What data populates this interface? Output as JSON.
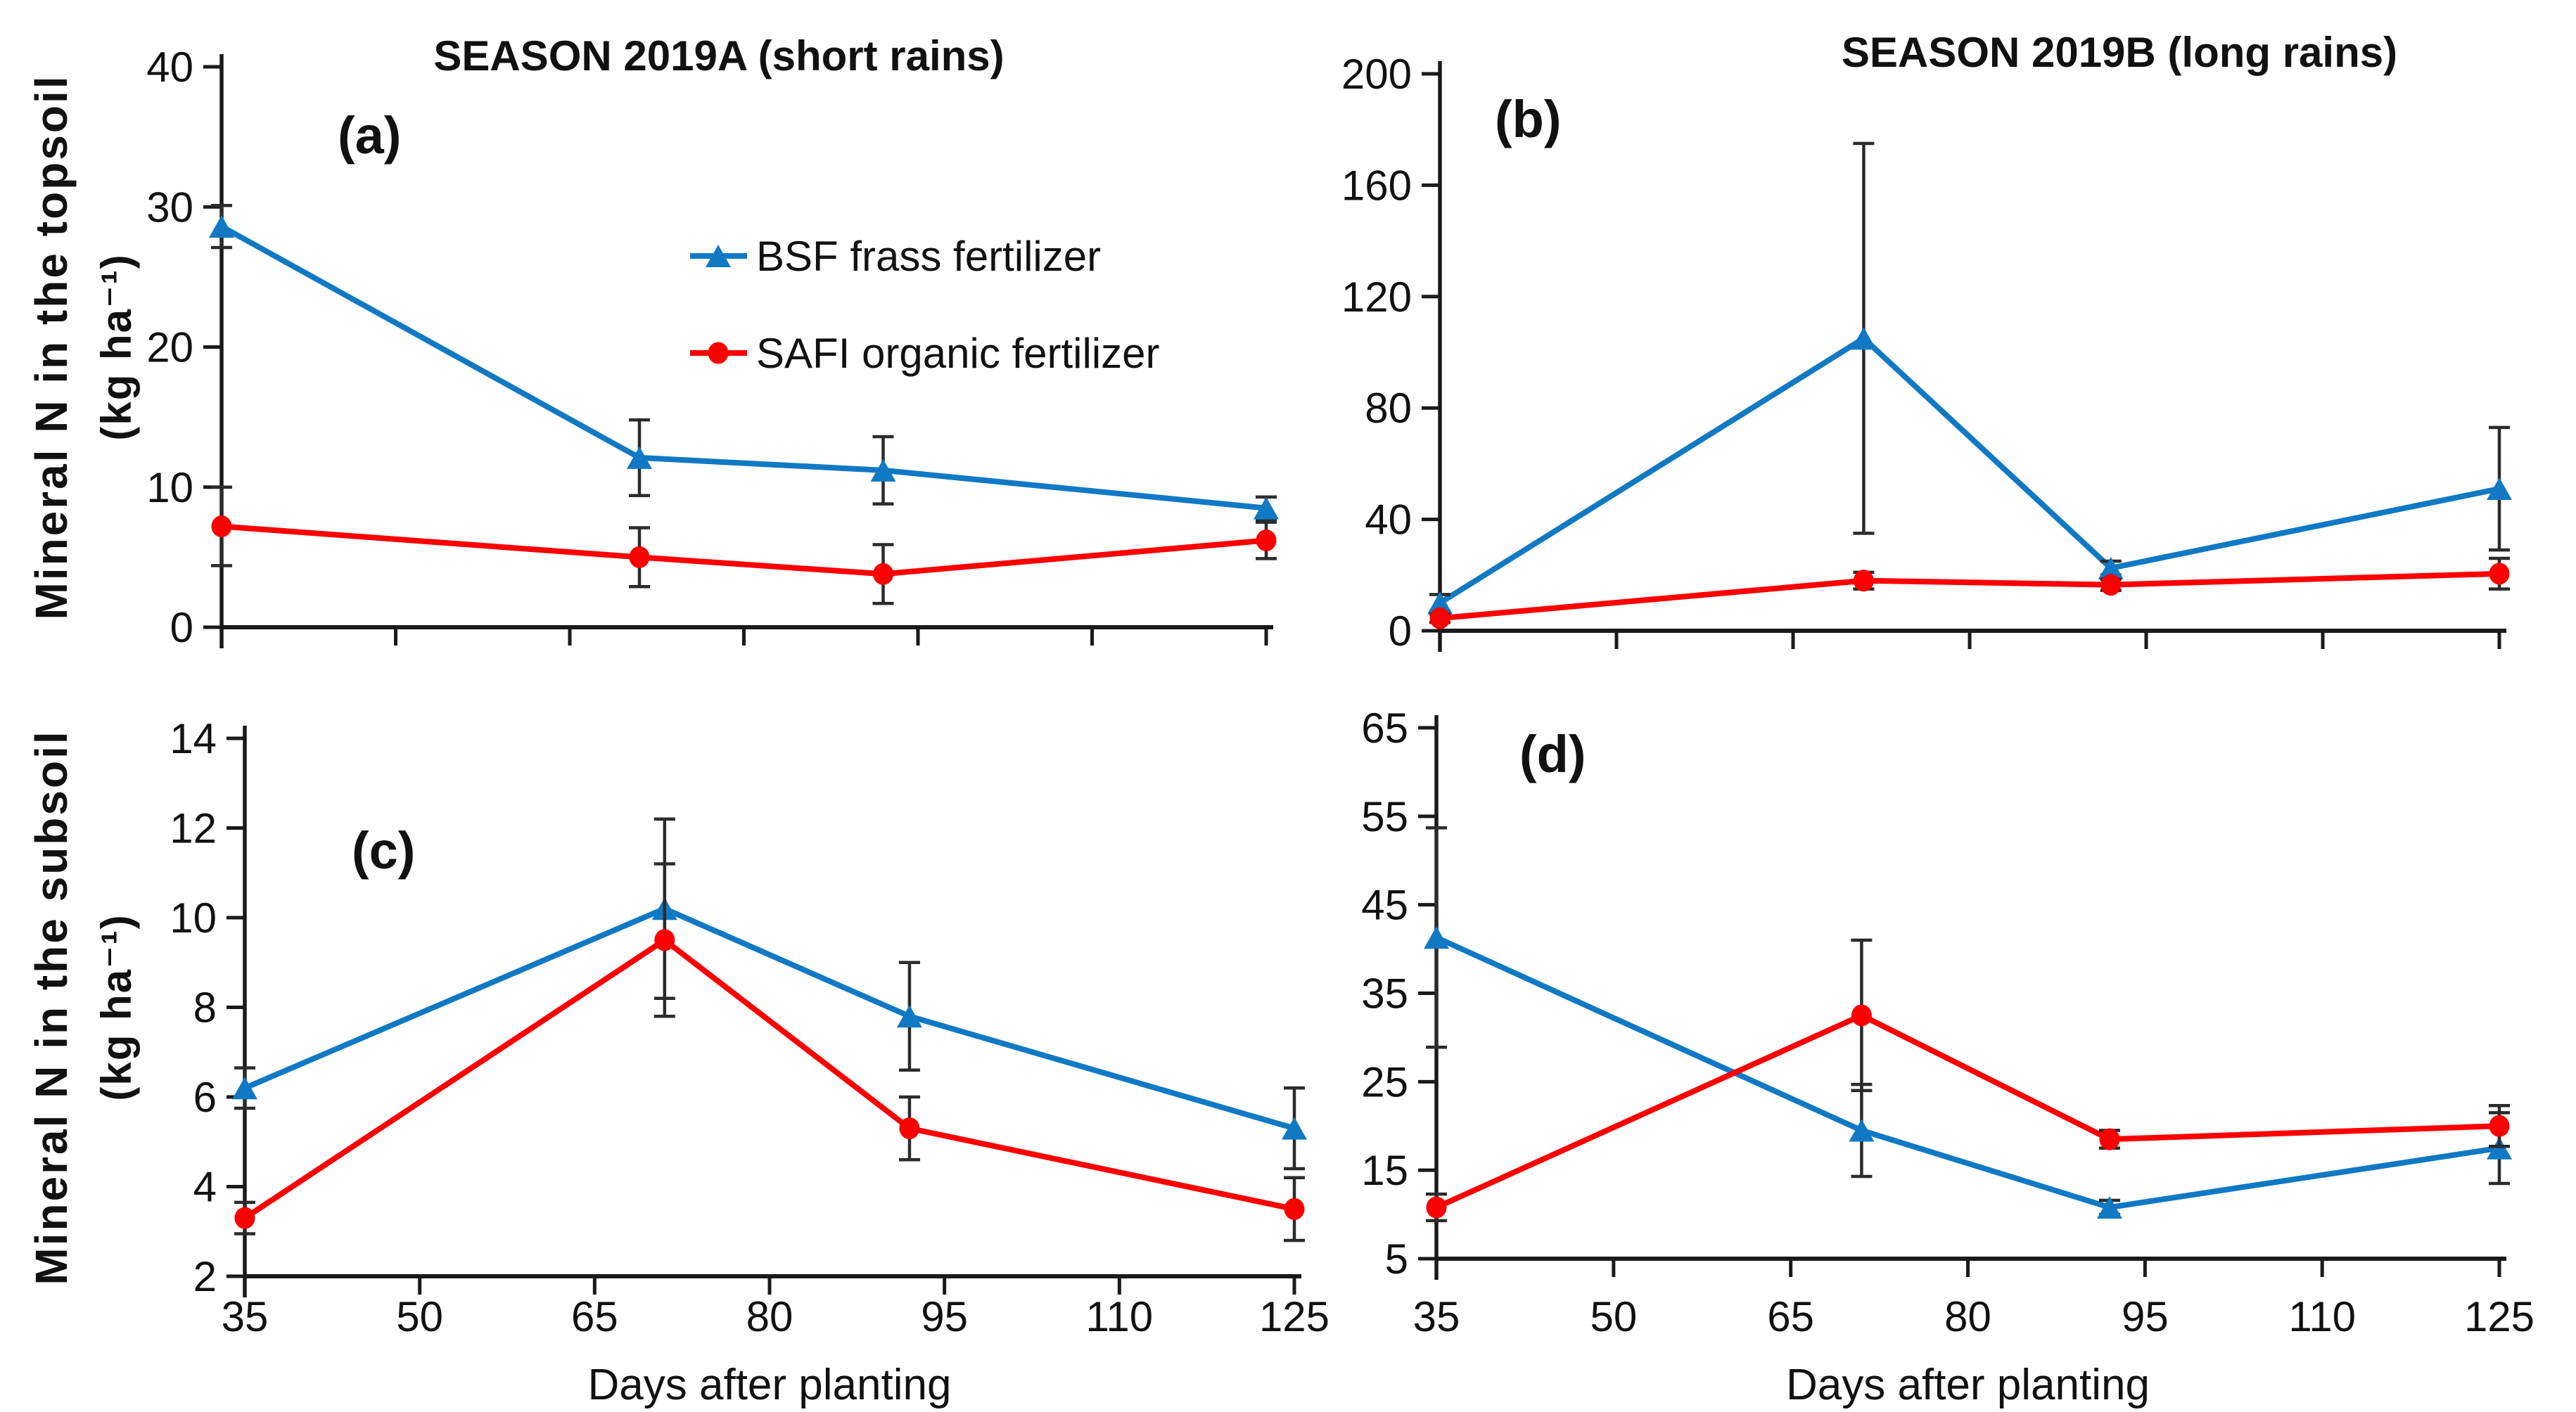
{
  "chart_data": {
    "type": "line",
    "x_label": "Days after planting",
    "x_values_days": [
      35,
      71,
      92,
      125
    ],
    "xticks": [
      35,
      50,
      65,
      80,
      95,
      110,
      125
    ],
    "legend": [
      {
        "name": "BSF frass fertilizer",
        "color": "#1179C4",
        "marker": "triangle"
      },
      {
        "name": "SAFI organic fertilizer",
        "color": "#FB0000",
        "marker": "circle"
      }
    ],
    "error_bar_color": "#2B2B2B",
    "axis_color": "#1A1A1A",
    "panels": [
      {
        "id": "a",
        "letter": "(a)",
        "title": "SEASON 2019A (short rains)",
        "ylabel": "Mineral N in the topsoil",
        "ylabel_unit": "(kg ha⁻¹)",
        "ylim": [
          0,
          40
        ],
        "yticks": [
          0,
          10,
          20,
          30,
          40
        ],
        "show_x_labels": false,
        "show_x_axis_label": false,
        "has_legend": true,
        "series": [
          {
            "name": "BSF frass fertilizer",
            "values": [
              28.6,
              12.1,
              11.2,
              8.5
            ],
            "errors": [
              1.5,
              2.7,
              2.4,
              0.8
            ]
          },
          {
            "name": "SAFI organic fertilizer",
            "values": [
              7.2,
              5.0,
              3.8,
              6.2
            ],
            "errors": [
              2.8,
              2.1,
              2.1,
              1.3
            ]
          }
        ]
      },
      {
        "id": "b",
        "letter": "(b)",
        "title": "SEASON 2019B (long rains)",
        "ylabel": "",
        "ylabel_unit": "",
        "ylim": [
          0,
          200
        ],
        "yticks": [
          0,
          40,
          80,
          120,
          160,
          200
        ],
        "show_x_labels": false,
        "show_x_axis_label": false,
        "has_legend": false,
        "series": [
          {
            "name": "BSF frass fertilizer",
            "values": [
              10,
              105,
              22.5,
              51
            ],
            "errors": [
              3,
              70,
              2.5,
              22
            ]
          },
          {
            "name": "SAFI organic fertilizer",
            "values": [
              4.5,
              18,
              16.5,
              20.5
            ],
            "errors": [
              1.5,
              3,
              2,
              5.5
            ]
          }
        ]
      },
      {
        "id": "c",
        "letter": "(c)",
        "title": "",
        "ylabel": "Mineral N in the subsoil",
        "ylabel_unit": "(kg ha⁻¹)",
        "ylim": [
          2,
          14
        ],
        "yticks": [
          2,
          4,
          6,
          8,
          10,
          12,
          14
        ],
        "show_x_labels": true,
        "show_x_axis_label": true,
        "has_legend": false,
        "series": [
          {
            "name": "BSF frass fertilizer",
            "values": [
              6.2,
              10.2,
              7.8,
              5.3
            ],
            "errors": [
              0.45,
              2.0,
              1.2,
              0.9
            ]
          },
          {
            "name": "SAFI organic fertilizer",
            "values": [
              3.3,
              9.5,
              5.3,
              3.5
            ],
            "errors": [
              0.35,
              1.7,
              0.7,
              0.7
            ]
          }
        ]
      },
      {
        "id": "d",
        "letter": "(d)",
        "title": "",
        "ylabel": "",
        "ylabel_unit": "",
        "ylim": [
          5,
          65
        ],
        "yticks": [
          5,
          15,
          25,
          35,
          45,
          55,
          65
        ],
        "show_x_labels": true,
        "show_x_axis_label": true,
        "has_legend": false,
        "series": [
          {
            "name": "BSF frass fertilizer",
            "values": [
              41.3,
              19.5,
              10.8,
              17.5
            ],
            "errors": [
              12.4,
              5.2,
              0.8,
              4.0
            ]
          },
          {
            "name": "SAFI organic fertilizer",
            "values": [
              10.8,
              32.5,
              18.5,
              20.0
            ],
            "errors": [
              1.5,
              8.5,
              1.0,
              2.3
            ]
          }
        ]
      }
    ]
  }
}
